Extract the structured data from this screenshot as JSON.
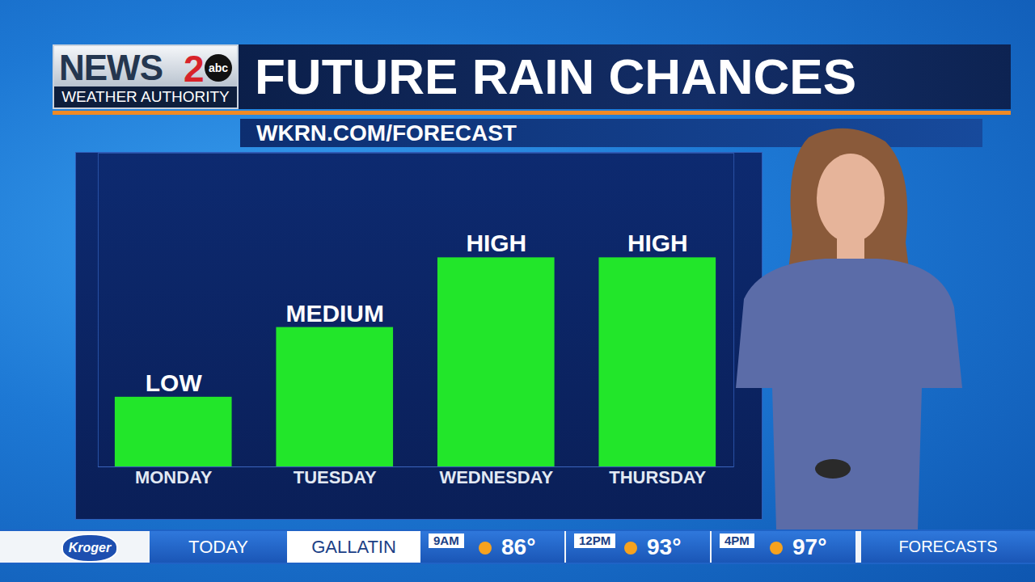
{
  "header": {
    "logo": "NEWS",
    "logo_number": "2",
    "network": "abc",
    "tagline": "WEATHER AUTHORITY"
  },
  "chart_data": {
    "type": "bar",
    "title": "FUTURE RAIN CHANCES",
    "subtitle": "WKRN.COM/FORECAST",
    "categories": [
      "MONDAY",
      "TUESDAY",
      "WEDNESDAY",
      "THURSDAY"
    ],
    "values": [
      1,
      2,
      3,
      3
    ],
    "value_labels": [
      "LOW",
      "MEDIUM",
      "HIGH",
      "HIGH"
    ],
    "color": "#22e62a",
    "ylim": [
      0,
      4.5
    ],
    "yticks": [],
    "grid": false,
    "data_labels": true,
    "tick_labels": "x"
  },
  "ticker": {
    "sponsor": "Kroger",
    "period": "TODAY",
    "location": "GALLATIN",
    "forecasts": [
      {
        "time": "9AM",
        "temperature": "86°"
      },
      {
        "time": "12PM",
        "temperature": "93°"
      },
      {
        "time": "4PM",
        "temperature": "97°"
      }
    ],
    "link": "FORECASTS"
  }
}
